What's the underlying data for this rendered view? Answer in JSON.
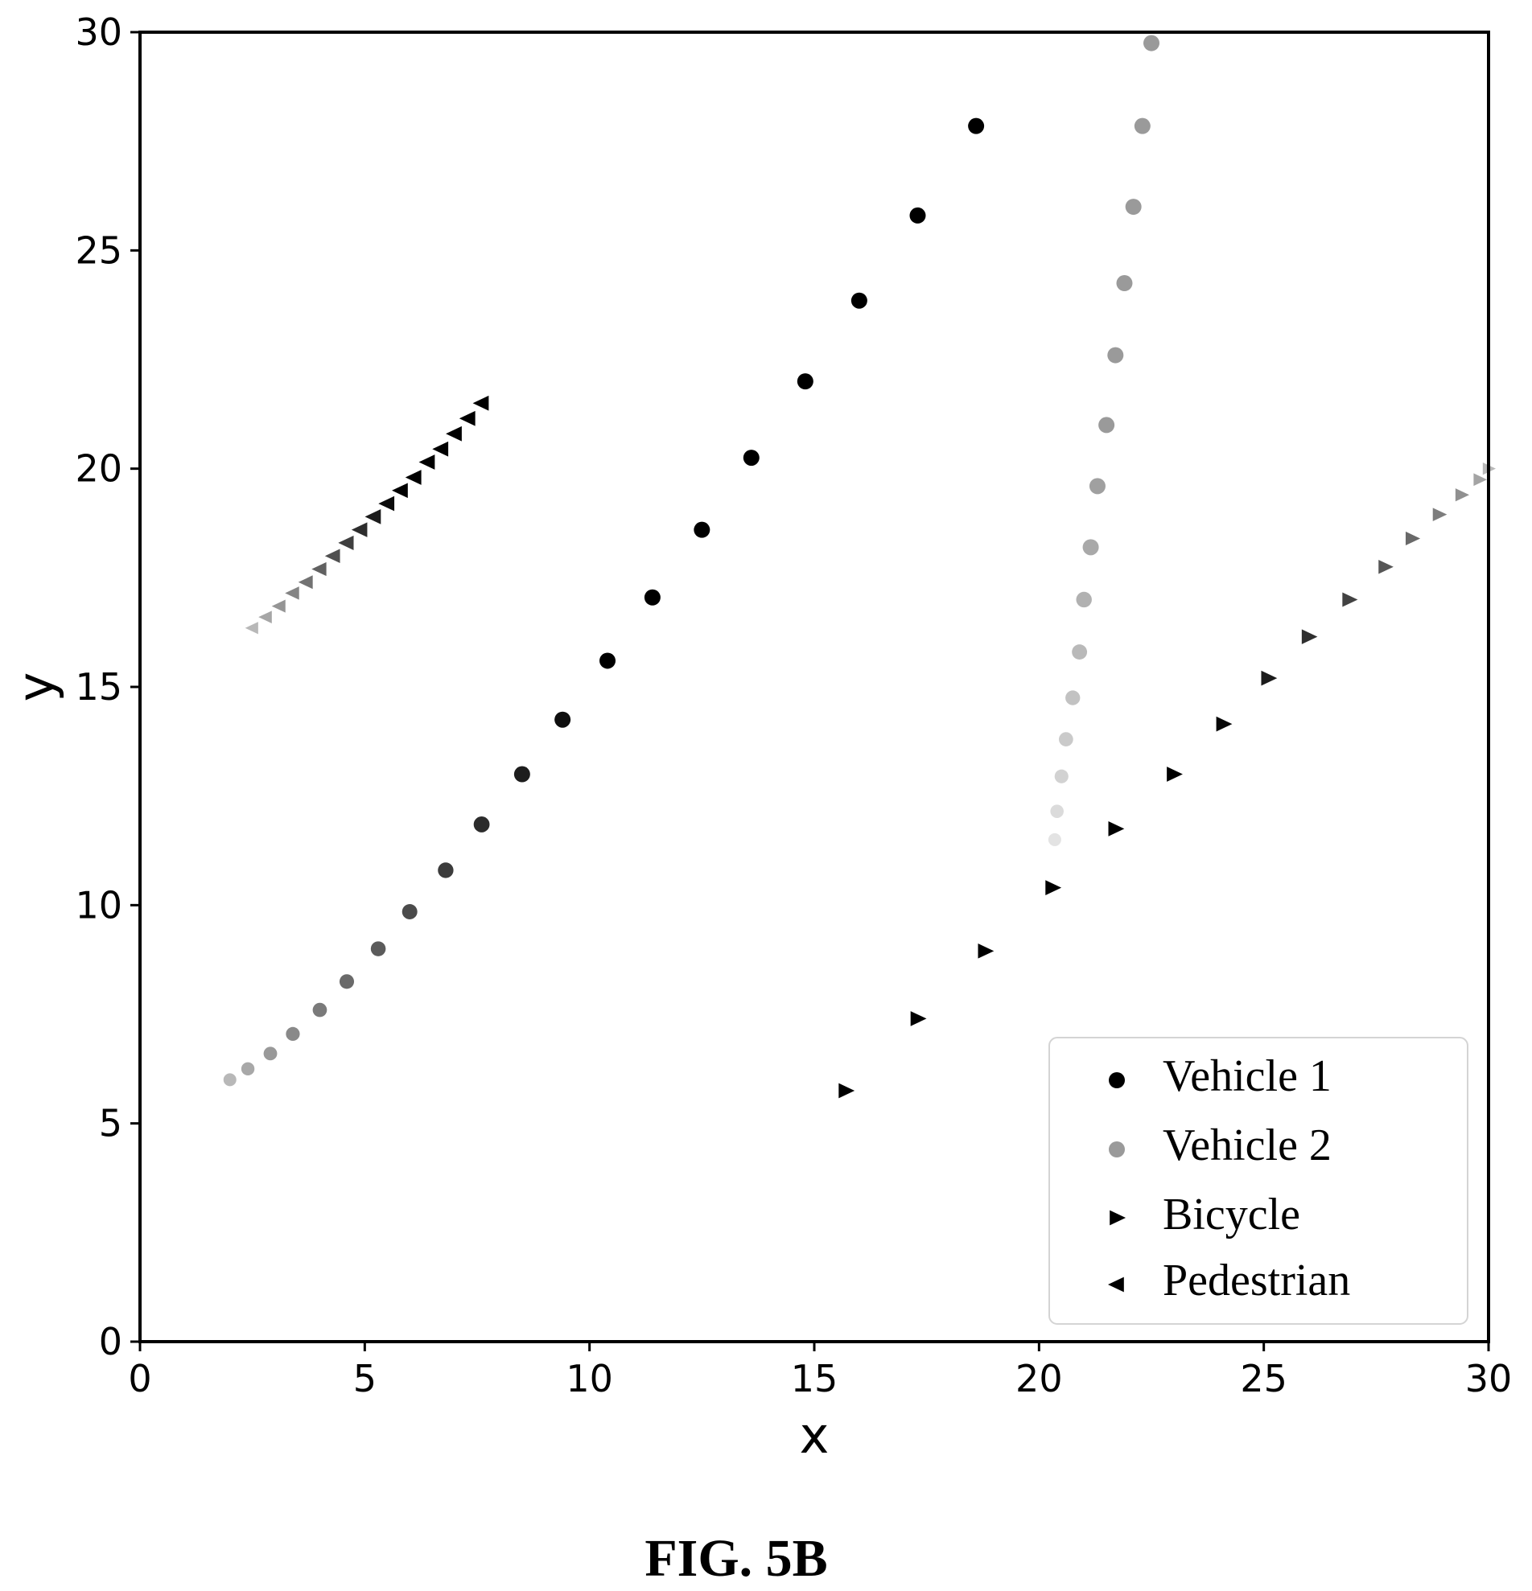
{
  "figure_caption": "FIG. 5B",
  "chart_data": {
    "type": "scatter",
    "xlabel": "x",
    "ylabel": "y",
    "xlim": [
      0,
      30
    ],
    "ylim": [
      0,
      30
    ],
    "xticks": [
      "0",
      "5",
      "10",
      "15",
      "20",
      "25",
      "30"
    ],
    "yticks": [
      "0",
      "5",
      "10",
      "15",
      "20",
      "25",
      "30"
    ],
    "grid": false,
    "legend_position": "bottom-right",
    "series": [
      {
        "name": "Vehicle 1",
        "marker": "circle",
        "color": "#000000",
        "fade": "in",
        "points": [
          [
            2.0,
            6.0
          ],
          [
            2.4,
            6.25
          ],
          [
            2.9,
            6.6
          ],
          [
            3.4,
            7.05
          ],
          [
            4.0,
            7.6
          ],
          [
            4.6,
            8.25
          ],
          [
            5.3,
            9.0
          ],
          [
            6.0,
            9.85
          ],
          [
            6.8,
            10.8
          ],
          [
            7.6,
            11.85
          ],
          [
            8.5,
            13.0
          ],
          [
            9.4,
            14.25
          ],
          [
            10.4,
            15.6
          ],
          [
            11.4,
            17.05
          ],
          [
            12.5,
            18.6
          ],
          [
            13.6,
            20.25
          ],
          [
            14.8,
            22.0
          ],
          [
            16.0,
            23.85
          ],
          [
            17.3,
            25.8
          ],
          [
            18.6,
            27.85
          ]
        ]
      },
      {
        "name": "Vehicle 2",
        "marker": "circle",
        "color": "#9a9a9a",
        "fade": "in",
        "points": [
          [
            20.35,
            11.5
          ],
          [
            20.4,
            12.15
          ],
          [
            20.5,
            12.95
          ],
          [
            20.6,
            13.8
          ],
          [
            20.75,
            14.75
          ],
          [
            20.9,
            15.8
          ],
          [
            21.0,
            17.0
          ],
          [
            21.15,
            18.2
          ],
          [
            21.3,
            19.6
          ],
          [
            21.5,
            21.0
          ],
          [
            21.7,
            22.6
          ],
          [
            21.9,
            24.25
          ],
          [
            22.1,
            26.0
          ],
          [
            22.3,
            27.85
          ],
          [
            22.5,
            29.75
          ]
        ]
      },
      {
        "name": "Bicycle",
        "marker": "triangle-right",
        "color": "#000000",
        "fade": "out",
        "points": [
          [
            15.7,
            5.75
          ],
          [
            17.3,
            7.4
          ],
          [
            18.8,
            8.95
          ],
          [
            20.3,
            10.4
          ],
          [
            21.7,
            11.75
          ],
          [
            23.0,
            13.0
          ],
          [
            24.1,
            14.15
          ],
          [
            25.1,
            15.2
          ],
          [
            26.0,
            16.15
          ],
          [
            26.9,
            17.0
          ],
          [
            27.7,
            17.75
          ],
          [
            28.3,
            18.4
          ],
          [
            28.9,
            18.95
          ],
          [
            29.4,
            19.4
          ],
          [
            29.8,
            19.75
          ],
          [
            30.0,
            20.0
          ]
        ]
      },
      {
        "name": "Pedestrian",
        "marker": "triangle-left",
        "color": "#000000",
        "fade": "in",
        "points": [
          [
            2.5,
            16.35
          ],
          [
            2.8,
            16.6
          ],
          [
            3.1,
            16.85
          ],
          [
            3.4,
            17.15
          ],
          [
            3.7,
            17.4
          ],
          [
            4.0,
            17.7
          ],
          [
            4.3,
            18.0
          ],
          [
            4.6,
            18.3
          ],
          [
            4.9,
            18.6
          ],
          [
            5.2,
            18.9
          ],
          [
            5.5,
            19.2
          ],
          [
            5.8,
            19.5
          ],
          [
            6.1,
            19.8
          ],
          [
            6.4,
            20.15
          ],
          [
            6.7,
            20.45
          ],
          [
            7.0,
            20.8
          ],
          [
            7.3,
            21.15
          ],
          [
            7.6,
            21.5
          ]
        ]
      }
    ]
  }
}
